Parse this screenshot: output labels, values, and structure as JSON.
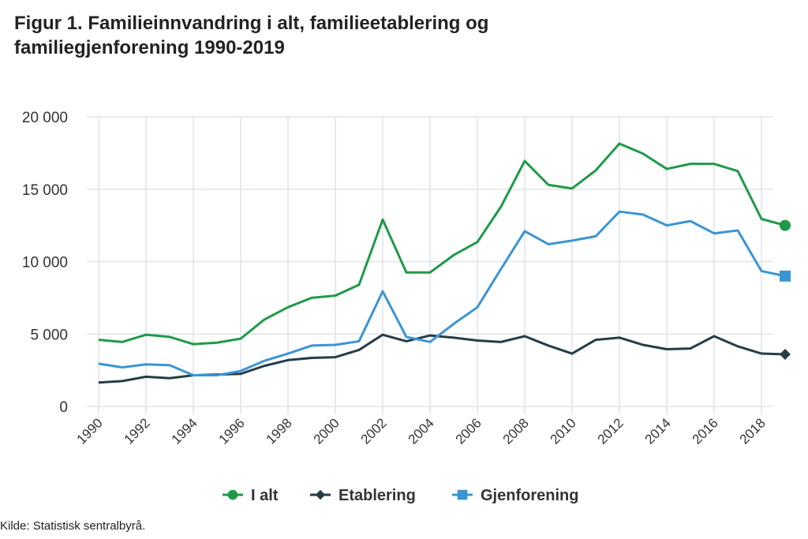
{
  "title": "Figur 1. Familieinnvandring i alt, familieetablering og familiegjenforening 1990-2019",
  "source": "Kilde: Statistisk sentralbyrå.",
  "chart_data": {
    "type": "line",
    "title": "Figur 1. Familieinnvandring i alt, familieetablering og familiegjenforening 1990-2019",
    "xlabel": "",
    "ylabel": "",
    "x": [
      1990,
      1991,
      1992,
      1993,
      1994,
      1995,
      1996,
      1997,
      1998,
      1999,
      2000,
      2001,
      2002,
      2003,
      2004,
      2005,
      2006,
      2007,
      2008,
      2009,
      2010,
      2011,
      2012,
      2013,
      2014,
      2015,
      2016,
      2017,
      2018,
      2019
    ],
    "x_tick_labels": [
      "1990",
      "1992",
      "1994",
      "1996",
      "1998",
      "2000",
      "2002",
      "2004",
      "2006",
      "2008",
      "2010",
      "2012",
      "2014",
      "2016",
      "2018"
    ],
    "ylim": [
      0,
      20000
    ],
    "y_ticks": [
      0,
      5000,
      10000,
      15000,
      20000
    ],
    "y_tick_labels": [
      "0",
      "5 000",
      "10 000",
      "15 000",
      "20 000"
    ],
    "grid": true,
    "legend_position": "bottom",
    "series": [
      {
        "name": "I alt",
        "color": "#1f9a48",
        "marker": "circle",
        "values": [
          4600,
          4450,
          4950,
          4800,
          4300,
          4400,
          4680,
          6000,
          6850,
          7500,
          7650,
          8400,
          12900,
          9250,
          9250,
          10450,
          11350,
          13800,
          16950,
          15300,
          15050,
          16300,
          18150,
          17450,
          16400,
          16750,
          16750,
          16250,
          12950,
          12500
        ]
      },
      {
        "name": "Etablering",
        "color": "#263d45",
        "marker": "diamond",
        "values": [
          1650,
          1750,
          2050,
          1950,
          2150,
          2200,
          2250,
          2800,
          3200,
          3350,
          3400,
          3900,
          4950,
          4500,
          4900,
          4750,
          4550,
          4450,
          4850,
          4200,
          3650,
          4600,
          4750,
          4250,
          3950,
          4000,
          4850,
          4150,
          3650,
          3600
        ]
      },
      {
        "name": "Gjenforening",
        "color": "#3b95d3",
        "marker": "square",
        "values": [
          2950,
          2700,
          2900,
          2850,
          2150,
          2150,
          2450,
          3150,
          3650,
          4200,
          4250,
          4500,
          7950,
          4800,
          4450,
          5700,
          6850,
          9500,
          12100,
          11200,
          11450,
          11750,
          13450,
          13250,
          12500,
          12800,
          11950,
          12150,
          9350,
          9000
        ]
      }
    ]
  }
}
